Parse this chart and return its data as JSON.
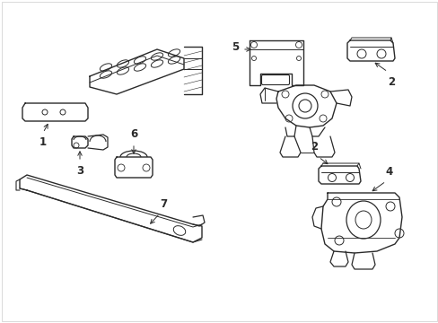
{
  "bg_color": "#ffffff",
  "line_color": "#2a2a2a",
  "fig_width": 4.89,
  "fig_height": 3.6,
  "dpi": 100,
  "border_color": "#cccccc"
}
